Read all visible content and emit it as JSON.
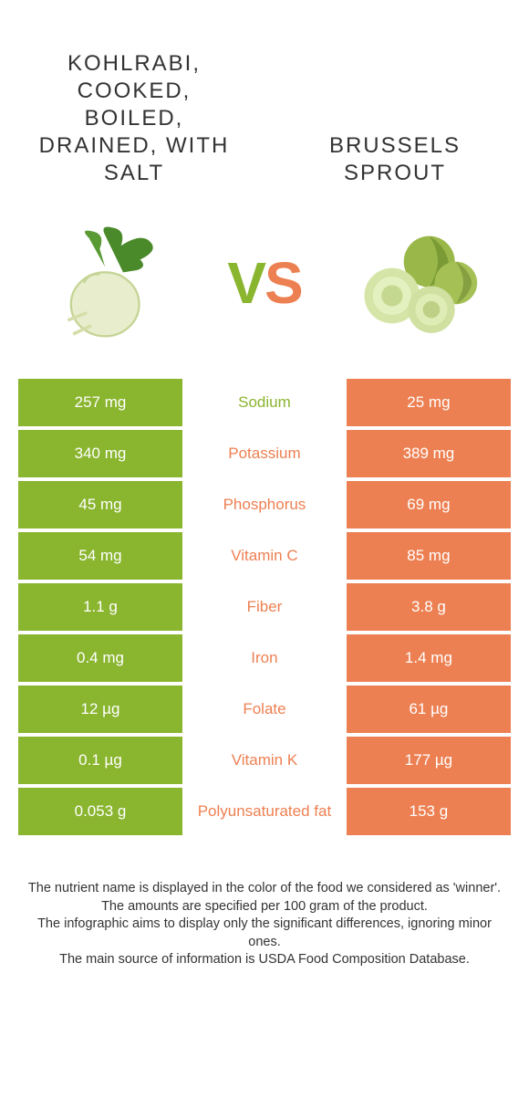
{
  "colors": {
    "left": "#8ab52f",
    "right": "#ed8052",
    "bg": "#ffffff",
    "text": "#333333"
  },
  "header": {
    "left_title": "Kohlrabi, cooked, boiled, drained, with salt",
    "right_title": "Brussels sprout",
    "vs_v": "V",
    "vs_s": "S"
  },
  "rows": [
    {
      "nutrient": "Sodium",
      "left": "257 mg",
      "right": "25 mg",
      "winner": "left"
    },
    {
      "nutrient": "Potassium",
      "left": "340 mg",
      "right": "389 mg",
      "winner": "right"
    },
    {
      "nutrient": "Phosphorus",
      "left": "45 mg",
      "right": "69 mg",
      "winner": "right"
    },
    {
      "nutrient": "Vitamin C",
      "left": "54 mg",
      "right": "85 mg",
      "winner": "right"
    },
    {
      "nutrient": "Fiber",
      "left": "1.1 g",
      "right": "3.8 g",
      "winner": "right"
    },
    {
      "nutrient": "Iron",
      "left": "0.4 mg",
      "right": "1.4 mg",
      "winner": "right"
    },
    {
      "nutrient": "Folate",
      "left": "12 µg",
      "right": "61 µg",
      "winner": "right"
    },
    {
      "nutrient": "Vitamin K",
      "left": "0.1 µg",
      "right": "177 µg",
      "winner": "right"
    },
    {
      "nutrient": "Polyunsaturated fat",
      "left": "0.053 g",
      "right": "153 g",
      "winner": "right"
    }
  ],
  "footer": {
    "line1": "The nutrient name is displayed in the color of the food we considered as 'winner'.",
    "line2": "The amounts are specified per 100 gram of the product.",
    "line3": "The infographic aims to display only the significant differences, ignoring minor ones.",
    "line4": "The main source of information is USDA Food Composition Database."
  }
}
